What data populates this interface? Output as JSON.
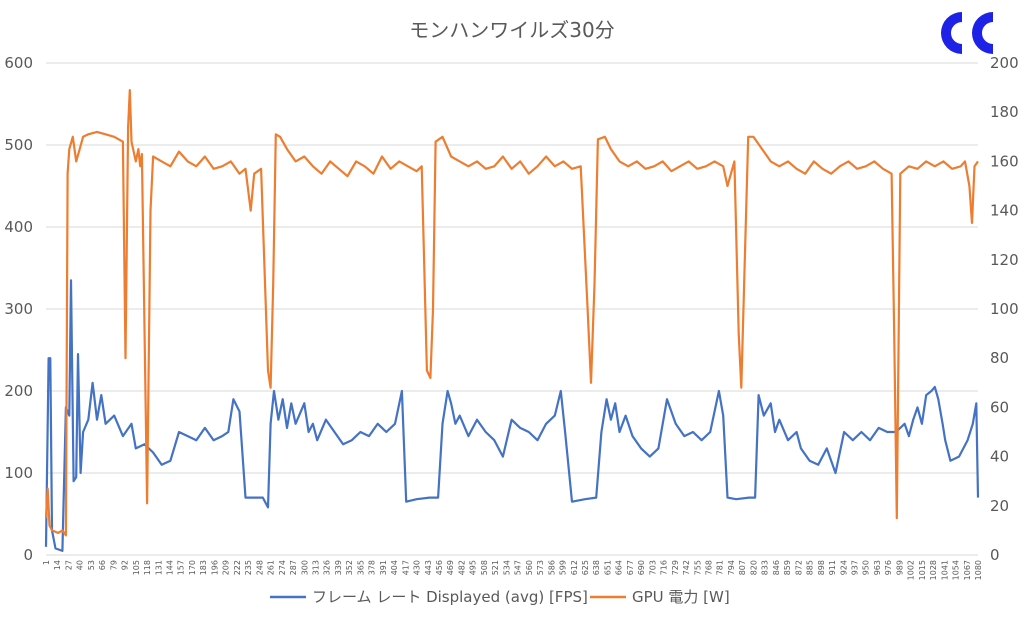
{
  "chart_data": {
    "type": "line",
    "title": "モンハンワイルズ30分",
    "xlabel": "",
    "ylabel": "",
    "x_start": 1,
    "x_end": 1080,
    "x_tick_step": 13,
    "ylim_left": [
      0,
      600
    ],
    "ylim_right": [
      0,
      200
    ],
    "y_ticks_left": [
      0,
      100,
      200,
      300,
      400,
      500,
      600
    ],
    "y_ticks_right": [
      0,
      20,
      40,
      60,
      80,
      100,
      120,
      140,
      160,
      180,
      200
    ],
    "grid": true,
    "legend_position": "bottom",
    "series": [
      {
        "name": "フレーム レート Displayed (avg) [FPS]",
        "axis": "left",
        "color": "#4472C4",
        "points": [
          [
            1,
            10
          ],
          [
            4,
            240
          ],
          [
            6,
            240
          ],
          [
            8,
            30
          ],
          [
            12,
            8
          ],
          [
            20,
            5
          ],
          [
            24,
            180
          ],
          [
            28,
            170
          ],
          [
            30,
            335
          ],
          [
            33,
            90
          ],
          [
            36,
            95
          ],
          [
            38,
            245
          ],
          [
            41,
            100
          ],
          [
            44,
            150
          ],
          [
            50,
            165
          ],
          [
            55,
            210
          ],
          [
            60,
            165
          ],
          [
            65,
            195
          ],
          [
            70,
            160
          ],
          [
            80,
            170
          ],
          [
            90,
            145
          ],
          [
            100,
            160
          ],
          [
            105,
            130
          ],
          [
            115,
            135
          ],
          [
            125,
            125
          ],
          [
            135,
            110
          ],
          [
            145,
            115
          ],
          [
            155,
            150
          ],
          [
            165,
            145
          ],
          [
            175,
            140
          ],
          [
            185,
            155
          ],
          [
            195,
            140
          ],
          [
            205,
            145
          ],
          [
            212,
            150
          ],
          [
            218,
            190
          ],
          [
            225,
            175
          ],
          [
            232,
            70
          ],
          [
            240,
            70
          ],
          [
            252,
            70
          ],
          [
            258,
            58
          ],
          [
            261,
            160
          ],
          [
            265,
            200
          ],
          [
            270,
            165
          ],
          [
            275,
            190
          ],
          [
            280,
            155
          ],
          [
            285,
            185
          ],
          [
            290,
            160
          ],
          [
            300,
            185
          ],
          [
            305,
            150
          ],
          [
            310,
            160
          ],
          [
            315,
            140
          ],
          [
            325,
            165
          ],
          [
            335,
            150
          ],
          [
            345,
            135
          ],
          [
            355,
            140
          ],
          [
            365,
            150
          ],
          [
            375,
            145
          ],
          [
            385,
            160
          ],
          [
            395,
            150
          ],
          [
            405,
            160
          ],
          [
            408,
            175
          ],
          [
            413,
            200
          ],
          [
            418,
            65
          ],
          [
            430,
            68
          ],
          [
            445,
            70
          ],
          [
            455,
            70
          ],
          [
            460,
            160
          ],
          [
            466,
            200
          ],
          [
            470,
            185
          ],
          [
            475,
            160
          ],
          [
            480,
            170
          ],
          [
            490,
            145
          ],
          [
            500,
            165
          ],
          [
            510,
            150
          ],
          [
            520,
            140
          ],
          [
            530,
            120
          ],
          [
            540,
            165
          ],
          [
            550,
            155
          ],
          [
            560,
            150
          ],
          [
            570,
            140
          ],
          [
            580,
            160
          ],
          [
            590,
            170
          ],
          [
            597,
            200
          ],
          [
            602,
            150
          ],
          [
            610,
            65
          ],
          [
            625,
            68
          ],
          [
            638,
            70
          ],
          [
            644,
            150
          ],
          [
            650,
            190
          ],
          [
            655,
            165
          ],
          [
            660,
            185
          ],
          [
            665,
            150
          ],
          [
            672,
            170
          ],
          [
            680,
            145
          ],
          [
            690,
            130
          ],
          [
            700,
            120
          ],
          [
            710,
            130
          ],
          [
            720,
            190
          ],
          [
            730,
            160
          ],
          [
            740,
            145
          ],
          [
            750,
            150
          ],
          [
            760,
            140
          ],
          [
            770,
            150
          ],
          [
            780,
            200
          ],
          [
            785,
            170
          ],
          [
            790,
            70
          ],
          [
            800,
            68
          ],
          [
            815,
            70
          ],
          [
            822,
            70
          ],
          [
            826,
            195
          ],
          [
            832,
            170
          ],
          [
            840,
            185
          ],
          [
            845,
            150
          ],
          [
            850,
            165
          ],
          [
            860,
            140
          ],
          [
            870,
            150
          ],
          [
            875,
            130
          ],
          [
            885,
            115
          ],
          [
            895,
            110
          ],
          [
            905,
            130
          ],
          [
            915,
            100
          ],
          [
            925,
            150
          ],
          [
            935,
            140
          ],
          [
            945,
            150
          ],
          [
            955,
            140
          ],
          [
            965,
            155
          ],
          [
            975,
            150
          ],
          [
            985,
            150
          ],
          [
            995,
            160
          ],
          [
            1000,
            145
          ],
          [
            1005,
            165
          ],
          [
            1010,
            180
          ],
          [
            1015,
            160
          ],
          [
            1020,
            195
          ],
          [
            1026,
            200
          ],
          [
            1030,
            205
          ],
          [
            1034,
            190
          ],
          [
            1039,
            160
          ],
          [
            1042,
            140
          ],
          [
            1048,
            115
          ],
          [
            1058,
            120
          ],
          [
            1068,
            140
          ],
          [
            1074,
            160
          ],
          [
            1078,
            185
          ],
          [
            1080,
            70
          ]
        ]
      },
      {
        "name": "GPU 電力 [W]",
        "axis": "right",
        "color": "#ED7D31",
        "points": [
          [
            1,
            15
          ],
          [
            3,
            27
          ],
          [
            5,
            12
          ],
          [
            8,
            10
          ],
          [
            15,
            9
          ],
          [
            20,
            10
          ],
          [
            24,
            8
          ],
          [
            26,
            155
          ],
          [
            28,
            165
          ],
          [
            32,
            170
          ],
          [
            36,
            160
          ],
          [
            40,
            165
          ],
          [
            44,
            170
          ],
          [
            50,
            171
          ],
          [
            60,
            172
          ],
          [
            70,
            171
          ],
          [
            80,
            170
          ],
          [
            90,
            168
          ],
          [
            93,
            80
          ],
          [
            96,
            174
          ],
          [
            98,
            189
          ],
          [
            100,
            168
          ],
          [
            105,
            160
          ],
          [
            108,
            165
          ],
          [
            110,
            158
          ],
          [
            112,
            163
          ],
          [
            118,
            21
          ],
          [
            122,
            140
          ],
          [
            125,
            162
          ],
          [
            135,
            160
          ],
          [
            145,
            158
          ],
          [
            155,
            164
          ],
          [
            165,
            160
          ],
          [
            175,
            158
          ],
          [
            185,
            162
          ],
          [
            195,
            157
          ],
          [
            205,
            158
          ],
          [
            215,
            160
          ],
          [
            225,
            155
          ],
          [
            232,
            157
          ],
          [
            238,
            140
          ],
          [
            242,
            155
          ],
          [
            250,
            157
          ],
          [
            258,
            75
          ],
          [
            261,
            68
          ],
          [
            264,
            110
          ],
          [
            267,
            171
          ],
          [
            272,
            170
          ],
          [
            280,
            165
          ],
          [
            290,
            160
          ],
          [
            300,
            162
          ],
          [
            310,
            158
          ],
          [
            320,
            155
          ],
          [
            330,
            160
          ],
          [
            340,
            157
          ],
          [
            350,
            154
          ],
          [
            360,
            160
          ],
          [
            370,
            158
          ],
          [
            380,
            155
          ],
          [
            390,
            162
          ],
          [
            400,
            157
          ],
          [
            410,
            160
          ],
          [
            420,
            158
          ],
          [
            430,
            156
          ],
          [
            436,
            158
          ],
          [
            442,
            75
          ],
          [
            446,
            72
          ],
          [
            449,
            100
          ],
          [
            452,
            168
          ],
          [
            460,
            170
          ],
          [
            470,
            162
          ],
          [
            480,
            160
          ],
          [
            490,
            158
          ],
          [
            500,
            160
          ],
          [
            510,
            157
          ],
          [
            520,
            158
          ],
          [
            530,
            162
          ],
          [
            540,
            157
          ],
          [
            550,
            160
          ],
          [
            560,
            155
          ],
          [
            570,
            158
          ],
          [
            580,
            162
          ],
          [
            590,
            158
          ],
          [
            600,
            160
          ],
          [
            610,
            157
          ],
          [
            620,
            158
          ],
          [
            628,
            100
          ],
          [
            632,
            70
          ],
          [
            636,
            110
          ],
          [
            640,
            169
          ],
          [
            648,
            170
          ],
          [
            655,
            165
          ],
          [
            665,
            160
          ],
          [
            675,
            158
          ],
          [
            685,
            160
          ],
          [
            695,
            157
          ],
          [
            705,
            158
          ],
          [
            715,
            160
          ],
          [
            725,
            156
          ],
          [
            735,
            158
          ],
          [
            745,
            160
          ],
          [
            755,
            157
          ],
          [
            765,
            158
          ],
          [
            775,
            160
          ],
          [
            785,
            158
          ],
          [
            790,
            150
          ],
          [
            798,
            160
          ],
          [
            803,
            90
          ],
          [
            806,
            68
          ],
          [
            810,
            120
          ],
          [
            814,
            170
          ],
          [
            820,
            170
          ],
          [
            830,
            165
          ],
          [
            840,
            160
          ],
          [
            850,
            158
          ],
          [
            860,
            160
          ],
          [
            870,
            157
          ],
          [
            880,
            155
          ],
          [
            890,
            160
          ],
          [
            900,
            157
          ],
          [
            910,
            155
          ],
          [
            920,
            158
          ],
          [
            930,
            160
          ],
          [
            940,
            157
          ],
          [
            950,
            158
          ],
          [
            960,
            160
          ],
          [
            970,
            157
          ],
          [
            980,
            155
          ],
          [
            983,
            90
          ],
          [
            986,
            15
          ],
          [
            990,
            155
          ],
          [
            1000,
            158
          ],
          [
            1010,
            157
          ],
          [
            1020,
            160
          ],
          [
            1030,
            158
          ],
          [
            1040,
            160
          ],
          [
            1050,
            157
          ],
          [
            1060,
            158
          ],
          [
            1065,
            160
          ],
          [
            1070,
            150
          ],
          [
            1073,
            135
          ],
          [
            1076,
            158
          ],
          [
            1080,
            160
          ]
        ]
      }
    ]
  },
  "colors": {
    "grid": "#D9D9D9",
    "axis_text": "#595959",
    "logo": "#1E22E6"
  },
  "logo": {
    "icon": "channel-logo-icon"
  }
}
